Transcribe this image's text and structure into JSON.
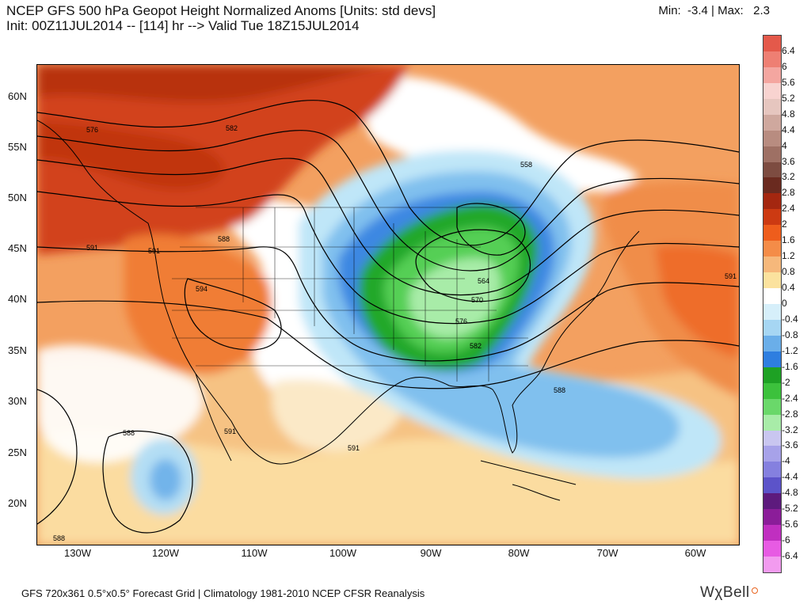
{
  "header": {
    "title_line1": "NCEP GFS 500 hPa Geopot Height Normalized Anoms [Units: std devs]",
    "title_line2": "Init: 00Z11JUL2014 -- [114] hr --> Valid Tue 18Z15JUL2014",
    "minmax": "Min:  -3.4 | Max:   2.3"
  },
  "map": {
    "lat_labels": [
      "60N",
      "55N",
      "50N",
      "45N",
      "40N",
      "35N",
      "30N",
      "25N",
      "20N"
    ],
    "lon_labels": [
      "130W",
      "120W",
      "110W",
      "100W",
      "90W",
      "80W",
      "70W",
      "60W"
    ],
    "contour_labels": [
      "576",
      "582",
      "588",
      "591",
      "591",
      "594",
      "558",
      "564",
      "570",
      "576",
      "582",
      "588",
      "591",
      "588",
      "591",
      "591",
      "588"
    ]
  },
  "colorbar": {
    "labels": [
      "6.4",
      "6",
      "5.6",
      "5.2",
      "4.8",
      "4.4",
      "4",
      "3.6",
      "3.2",
      "2.8",
      "2.4",
      "2",
      "1.6",
      "1.2",
      "0.8",
      "0.4",
      "0",
      "-0.4",
      "-0.8",
      "-1.2",
      "-1.6",
      "-2",
      "-2.4",
      "-2.8",
      "-3.2",
      "-3.6",
      "-4",
      "-4.4",
      "-4.8",
      "-5.2",
      "-5.6",
      "-6",
      "-6.4"
    ],
    "colors": [
      "#e4594a",
      "#ee7f73",
      "#f4a6a0",
      "#f8d3d0",
      "#e6c6bf",
      "#cfa89e",
      "#b88c80",
      "#9e7064",
      "#7d4c41",
      "#6a2a1f",
      "#a42710",
      "#cc3a12",
      "#ee5d1c",
      "#f48c48",
      "#f6b87b",
      "#fbe29e",
      "#ffffff",
      "#d6effa",
      "#a6d6f3",
      "#6aaee9",
      "#2e7ee0",
      "#1ea124",
      "#3cc13c",
      "#6ad86a",
      "#a8eca8",
      "#c9c6f0",
      "#a7a2e9",
      "#8580df",
      "#5c53c9",
      "#5d1a7d",
      "#8b1d99",
      "#c02fc0",
      "#e75be3",
      "#f29bef"
    ]
  },
  "footer": {
    "text": "GFS 720x361 0.5°x0.5° Forecast Grid | Climatology 1981-2010 NCEP CFSR Reanalysis",
    "brand": "WχBell"
  }
}
